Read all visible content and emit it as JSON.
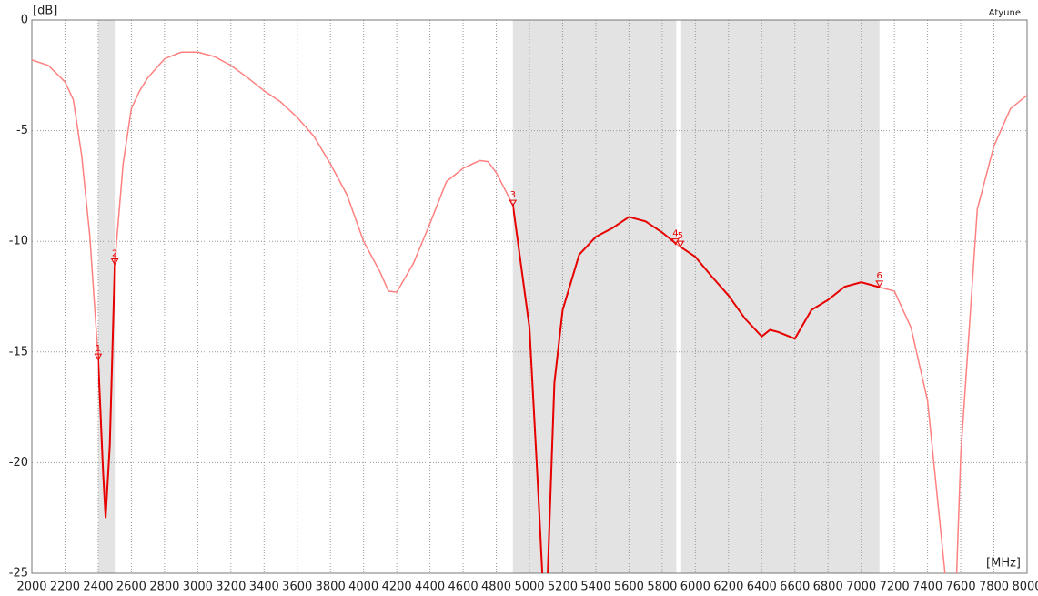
{
  "chart_data": {
    "type": "line",
    "y_label": "[dB]",
    "x_label": "[MHz]",
    "corner_label": "Atyune",
    "x": [
      2000,
      2100,
      2200,
      2250,
      2300,
      2350,
      2400,
      2430,
      2445,
      2470,
      2500,
      2550,
      2600,
      2650,
      2700,
      2800,
      2900,
      3000,
      3100,
      3200,
      3300,
      3400,
      3500,
      3600,
      3700,
      3800,
      3900,
      4000,
      4100,
      4150,
      4200,
      4300,
      4400,
      4500,
      4600,
      4700,
      4750,
      4800,
      4900,
      5000,
      5050,
      5080,
      5110,
      5150,
      5200,
      5300,
      5400,
      5500,
      5600,
      5700,
      5800,
      5900,
      6000,
      6100,
      6200,
      6300,
      6400,
      6450,
      6500,
      6600,
      6700,
      6800,
      6900,
      7000,
      7100,
      7200,
      7300,
      7400,
      7500,
      7520,
      7570,
      7600,
      7700,
      7800,
      7900,
      8000
    ],
    "series": [
      {
        "color": "#ff8080",
        "values": [
          -1.8,
          -2.05,
          -2.8,
          -3.6,
          -6.1,
          -9.8,
          -15.3,
          -20.5,
          -22.5,
          -19.2,
          -11,
          -6.5,
          -4.0,
          -3.2,
          -2.6,
          -1.75,
          -1.45,
          -1.45,
          -1.65,
          -2.05,
          -2.6,
          -3.2,
          -3.7,
          -4.4,
          -5.25,
          -6.5,
          -7.9,
          -10,
          -11.4,
          -12.25,
          -12.3,
          -11,
          -9.2,
          -7.3,
          -6.7,
          -6.35,
          -6.4,
          -6.9,
          -8.35,
          -13.9,
          -20.9,
          -25.4,
          -25,
          -16.4,
          -13.1,
          -10.6,
          -9.8,
          -9.4,
          -8.9,
          -9.1,
          -9.6,
          -10.2,
          -10.7,
          -11.6,
          -12.45,
          -13.5,
          -14.3,
          -14.0,
          -14.1,
          -14.4,
          -13.1,
          -12.65,
          -12.05,
          -11.85,
          -12.05,
          -12.25,
          -13.9,
          -17.2,
          -24.6,
          -26.2,
          -26.2,
          -19.65,
          -8.55,
          -5.7,
          -4.0,
          -3.4
        ]
      }
    ],
    "highlight_color": "#e60000",
    "xlim": [
      2000,
      8000
    ],
    "ylim": [
      -25,
      0
    ],
    "xticks": [
      2000,
      2200,
      2400,
      2600,
      2800,
      3000,
      3200,
      3400,
      3600,
      3800,
      4000,
      4200,
      4400,
      4600,
      4800,
      5000,
      5200,
      5400,
      5600,
      5800,
      6000,
      6200,
      6400,
      6600,
      6800,
      7000,
      7200,
      7400,
      7600,
      7800,
      8000
    ],
    "yticks": [
      0,
      -5,
      -10,
      -15,
      -20,
      -25
    ],
    "grid": true,
    "band_color": "#e3e3e3",
    "bands": [
      {
        "from": 2400,
        "to": 2500
      },
      {
        "from": 4900,
        "to": 5885
      },
      {
        "from": 5915,
        "to": 7110
      }
    ],
    "markers": [
      {
        "label": "1",
        "x": 2400,
        "y": -15.3
      },
      {
        "label": "2",
        "x": 2500,
        "y": -11
      },
      {
        "label": "3",
        "x": 4900,
        "y": -8.35
      },
      {
        "label": "4",
        "x": 5880,
        "y": -10.1
      },
      {
        "label": "5",
        "x": 5910,
        "y": -10.2
      },
      {
        "label": "6",
        "x": 7110,
        "y": -12
      }
    ]
  }
}
